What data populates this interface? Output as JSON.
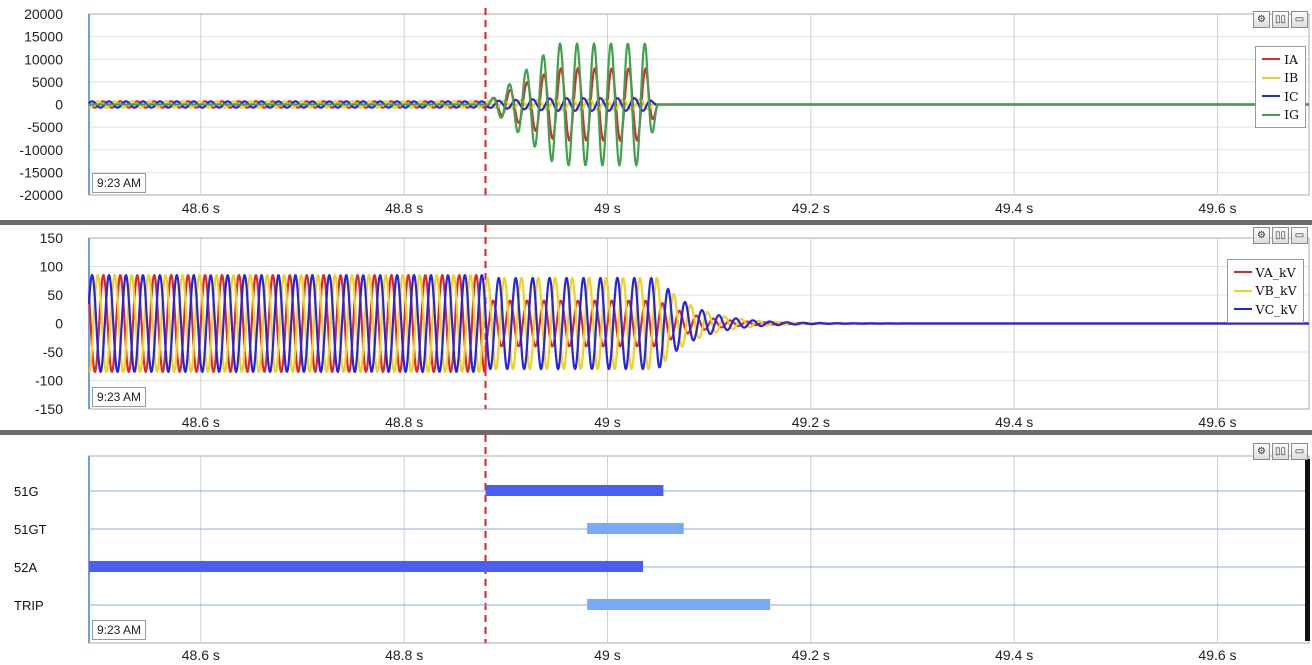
{
  "timestamp": "9:23 AM",
  "x_ticks": [
    48.6,
    48.8,
    49.0,
    49.2,
    49.4,
    49.6
  ],
  "x_tick_labels": [
    "48.6 s",
    "48.8 s",
    "49 s",
    "49.2 s",
    "49.4 s",
    "49.6 s"
  ],
  "x_range": [
    48.49,
    49.69
  ],
  "cursor_time": 48.88,
  "colors": {
    "red": "#e3262a",
    "yellow": "#f2d21e",
    "blue": "#2424e6",
    "green": "#3fa34d",
    "cursor": "#e02020",
    "bar_dark": "#4a5ef0",
    "bar_light": "#7aaaf7"
  },
  "chart_data": [
    {
      "type": "line",
      "y_ticks": [
        20000,
        15000,
        10000,
        5000,
        0,
        -5000,
        -10000,
        -15000,
        -20000
      ],
      "ylim": [
        -20000,
        20000
      ],
      "legend_position": "top-right",
      "series": [
        {
          "name": "IA",
          "color": "#e3262a",
          "pre_amplitude": 700,
          "fault_peak": 8000,
          "fault_end": 49.05,
          "frequency_hz": 60,
          "phase": 0
        },
        {
          "name": "IB",
          "color": "#f2d21e",
          "pre_amplitude": 700,
          "fault_peak": 1200,
          "fault_end": 49.05,
          "frequency_hz": 60,
          "phase": 2.094
        },
        {
          "name": "IC",
          "color": "#2424e6",
          "pre_amplitude": 700,
          "fault_peak": 1400,
          "fault_end": 49.05,
          "frequency_hz": 60,
          "phase": 4.189
        },
        {
          "name": "IG",
          "color": "#3fa34d",
          "pre_amplitude": 0,
          "fault_peak": 13500,
          "fault_end": 49.05,
          "frequency_hz": 60,
          "phase": 0.3
        }
      ]
    },
    {
      "type": "line",
      "y_ticks": [
        150,
        100,
        50,
        0,
        -50,
        -100,
        -150
      ],
      "ylim": [
        -150,
        150
      ],
      "legend_position": "top-right",
      "series": [
        {
          "name": "VA_kV",
          "color": "#e3262a",
          "amplitude": 85,
          "fault_amplitude": 40,
          "decay_start": 49.05,
          "frequency_hz": 60,
          "phase": 0
        },
        {
          "name": "VB_kV",
          "color": "#f2d21e",
          "amplitude": 85,
          "fault_amplitude": 80,
          "decay_start": 49.05,
          "frequency_hz": 60,
          "phase": 2.094
        },
        {
          "name": "VC_kV",
          "color": "#2424e6",
          "amplitude": 85,
          "fault_amplitude": 80,
          "decay_start": 49.05,
          "frequency_hz": 60,
          "phase": 4.189
        }
      ]
    },
    {
      "type": "bar",
      "channels": [
        {
          "name": "51G",
          "start": 48.88,
          "end": 49.055,
          "style": "dark"
        },
        {
          "name": "51GT",
          "start": 48.98,
          "end": 49.075,
          "style": "light"
        },
        {
          "name": "52A",
          "start": 48.49,
          "end": 49.035,
          "style": "dark"
        },
        {
          "name": "TRIP",
          "start": 48.98,
          "end": 49.16,
          "style": "light"
        }
      ]
    }
  ]
}
